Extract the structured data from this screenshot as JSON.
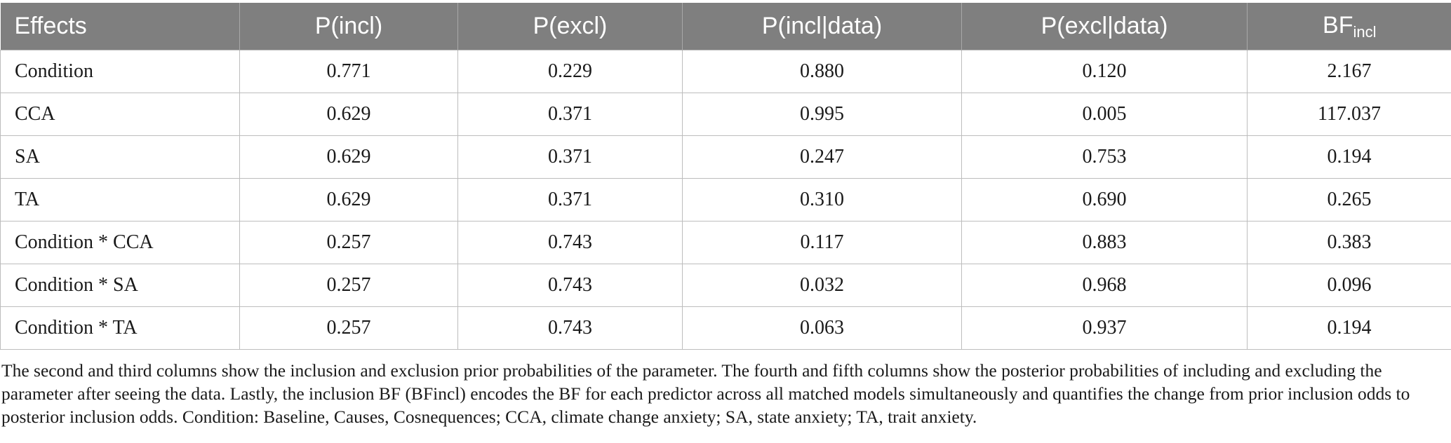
{
  "table": {
    "headers": {
      "effects": "Effects",
      "p_incl": "P(incl)",
      "p_excl": "P(excl)",
      "p_incl_data": "P(incl|data)",
      "p_excl_data": "P(excl|data)",
      "bf_main": "BF",
      "bf_sub": "incl"
    },
    "rows": [
      [
        "Condition",
        "0.771",
        "0.229",
        "0.880",
        "0.120",
        "2.167"
      ],
      [
        "CCA",
        "0.629",
        "0.371",
        "0.995",
        "0.005",
        "117.037"
      ],
      [
        "SA",
        "0.629",
        "0.371",
        "0.247",
        "0.753",
        "0.194"
      ],
      [
        "TA",
        "0.629",
        "0.371",
        "0.310",
        "0.690",
        "0.265"
      ],
      [
        "Condition * CCA",
        "0.257",
        "0.743",
        "0.117",
        "0.883",
        "0.383"
      ],
      [
        "Condition * SA",
        "0.257",
        "0.743",
        "0.032",
        "0.968",
        "0.096"
      ],
      [
        "Condition * TA",
        "0.257",
        "0.743",
        "0.063",
        "0.937",
        "0.194"
      ]
    ]
  },
  "footnote": "The second and third columns show the inclusion and exclusion prior probabilities of the parameter. The fourth and fifth columns show the posterior probabilities of including and excluding the parameter after seeing the data. Lastly, the inclusion BF (BFincl) encodes the BF for each predictor across all matched models simultaneously and quantifies the change from prior inclusion odds to posterior inclusion odds. Condition: Baseline, Causes, Cosnequences; CCA, climate change anxiety; SA, state anxiety; TA, trait anxiety.",
  "colors": {
    "header_bg": "#7f7f7f",
    "header_text": "#ffffff",
    "grid": "#bdbdbd"
  }
}
